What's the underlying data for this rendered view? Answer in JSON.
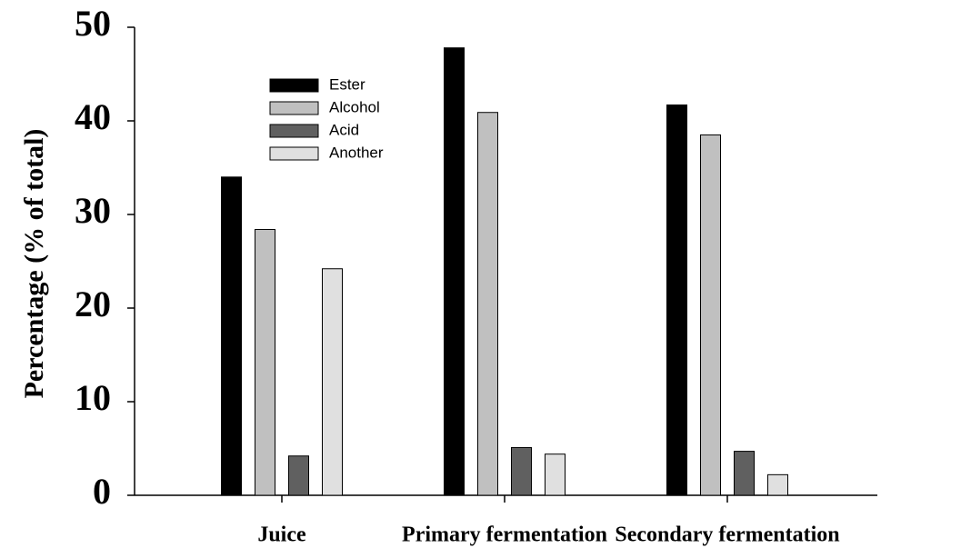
{
  "chart_data": {
    "type": "bar",
    "y_label": "Percentage (% of total)",
    "categories": [
      "Juice",
      "Primary fermentation",
      "Secondary fermentation"
    ],
    "series": [
      {
        "name": "Ester",
        "color": "#000000",
        "values": [
          34.0,
          47.8,
          41.7
        ]
      },
      {
        "name": "Alcohol",
        "color": "#c0c0c0",
        "values": [
          28.4,
          40.9,
          38.5
        ]
      },
      {
        "name": "Acid",
        "color": "#606060",
        "values": [
          4.2,
          5.1,
          4.7
        ]
      },
      {
        "name": "Another",
        "color": "#e0e0e0",
        "values": [
          24.2,
          4.4,
          2.2
        ]
      }
    ],
    "ylim": [
      0,
      50
    ],
    "yticks": [
      0,
      10,
      20,
      30,
      40,
      50
    ]
  }
}
